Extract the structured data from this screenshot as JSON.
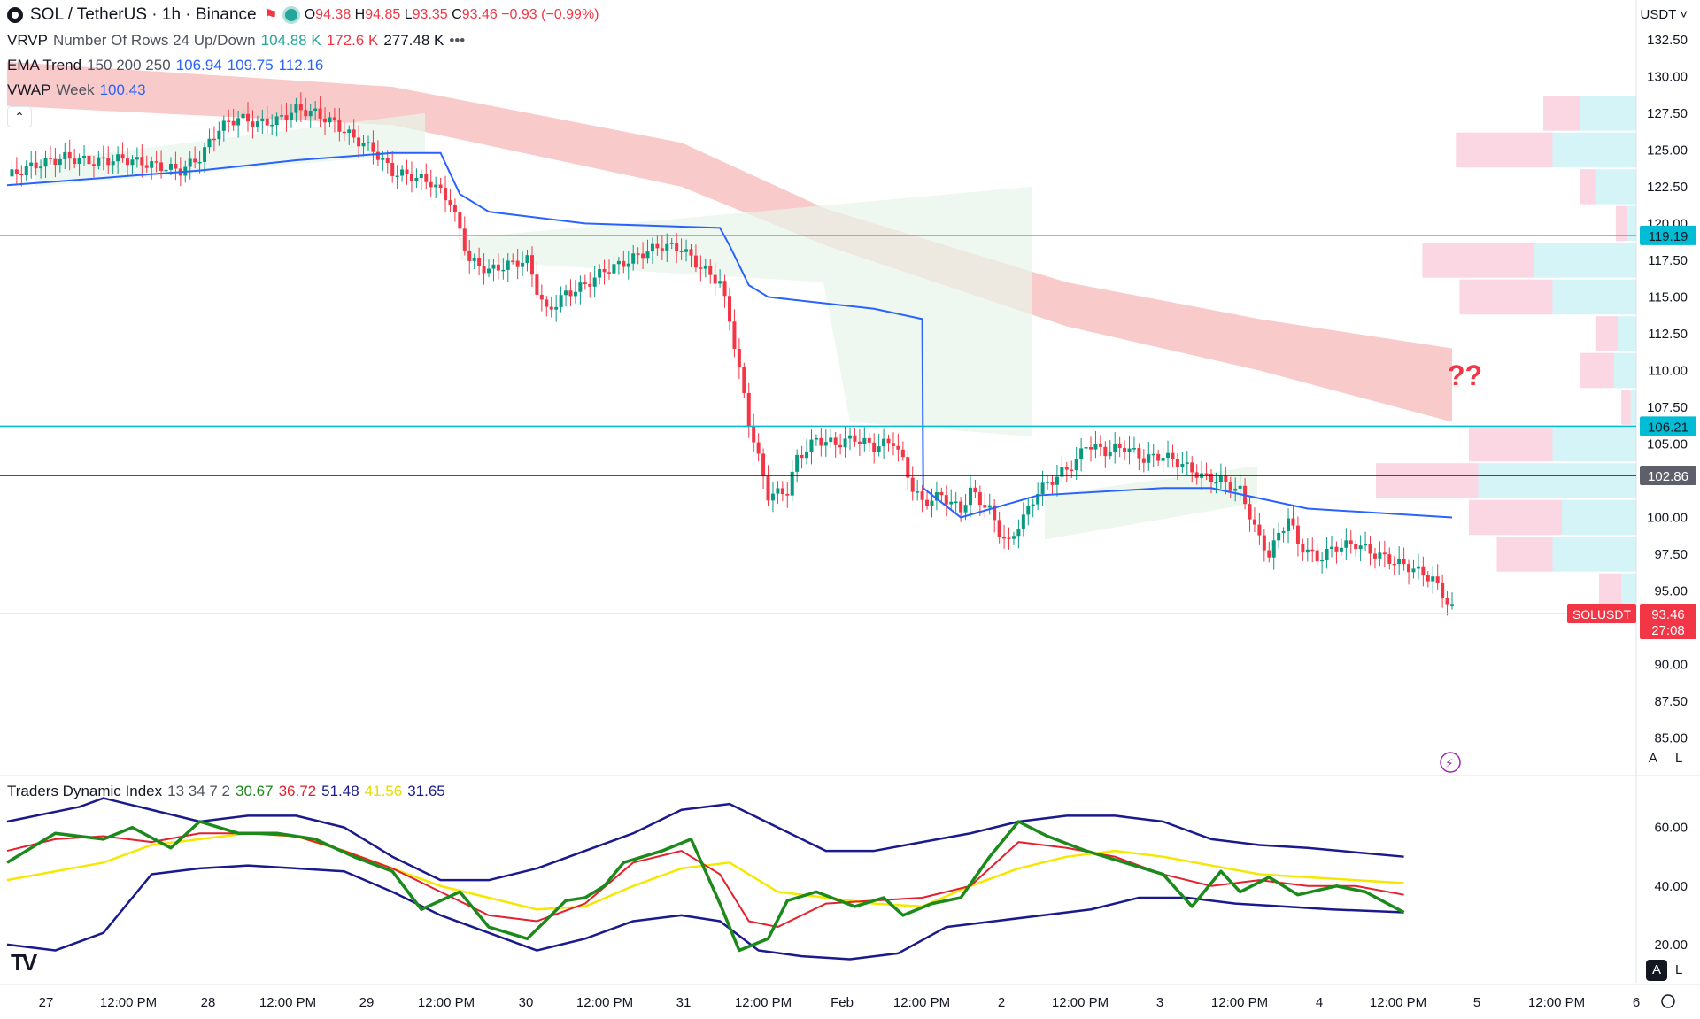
{
  "header": {
    "symbol": "SOL / TetherUS · 1h · Binance",
    "open_label": "O",
    "open": "94.38",
    "high_label": "H",
    "high": "94.85",
    "low_label": "L",
    "low": "93.35",
    "close_label": "C",
    "close": "93.46",
    "change": "−0.93 (−0.99%)",
    "currency": "USDT ˅"
  },
  "indicators": {
    "vrvp": {
      "name": "VRVP",
      "params": "Number Of Rows 24 Up/Down",
      "v1": "104.88 K",
      "v2": "172.6 K",
      "v3": "277.48 K"
    },
    "ema": {
      "name": "EMA Trend",
      "params": "150 200 250",
      "v1": "106.94",
      "v2": "109.75",
      "v3": "112.16"
    },
    "vwap": {
      "name": "VWAP",
      "params": "Week",
      "v1": "100.43"
    },
    "tdi": {
      "name": "Traders Dynamic Index",
      "params": "13 34 7 2",
      "v1": "30.67",
      "v2": "36.72",
      "v3": "51.48",
      "v4": "41.56",
      "v5": "31.65"
    }
  },
  "annotation": "??",
  "right_badges": {
    "line1": "119.19",
    "line2": "106.21",
    "line3": "102.86",
    "symbol_tag": "SOLUSDT",
    "last_price": "93.46",
    "countdown": "27:08"
  },
  "buttons": {
    "a": "A",
    "l": "L",
    "a2": "A",
    "l2": "L"
  },
  "colors": {
    "up": "#089981",
    "down": "#f23645",
    "vwap": "#2962ff",
    "horizontal_lines": "#00bcd4",
    "current_line": "#131722",
    "ema_band": "#f7b8b8",
    "tdi_green": "#1b8a1b",
    "tdi_red": "#e4202e",
    "tdi_yellow": "#f5e800",
    "tdi_navy": "#1a1a8c"
  },
  "chart_data": {
    "type": "candlestick",
    "price_axis": {
      "ylim": [
        82.5,
        134
      ],
      "ticks": [
        "132.50",
        "130.00",
        "127.50",
        "125.00",
        "122.50",
        "120.00",
        "117.50",
        "115.00",
        "112.50",
        "110.00",
        "107.50",
        "105.00",
        "102.50",
        "100.00",
        "97.50",
        "95.00",
        "90.00",
        "87.50",
        "85.00"
      ]
    },
    "time_axis": [
      "27",
      "12:00 PM",
      "28",
      "12:00 PM",
      "29",
      "12:00 PM",
      "30",
      "12:00 PM",
      "31",
      "12:00 PM",
      "Feb",
      "12:00 PM",
      "2",
      "12:00 PM",
      "3",
      "12:00 PM",
      "4",
      "12:00 PM",
      "5",
      "12:00 PM",
      "6"
    ],
    "horizontal_levels": [
      119.19,
      106.21,
      102.86
    ],
    "last_price": 93.46,
    "price_path": [
      [
        0,
        123.2
      ],
      [
        6,
        124.0
      ],
      [
        12,
        124.5
      ],
      [
        18,
        124.2
      ],
      [
        24,
        124.4
      ],
      [
        30,
        124.0
      ],
      [
        36,
        123.6
      ],
      [
        40,
        124.5
      ],
      [
        44,
        126.5
      ],
      [
        48,
        127.2
      ],
      [
        52,
        126.8
      ],
      [
        56,
        127.0
      ],
      [
        60,
        127.8
      ],
      [
        64,
        127.5
      ],
      [
        68,
        126.8
      ],
      [
        72,
        125.8
      ],
      [
        76,
        125.0
      ],
      [
        80,
        123.5
      ],
      [
        84,
        123.2
      ],
      [
        88,
        122.8
      ],
      [
        92,
        121.5
      ],
      [
        94,
        119.5
      ],
      [
        96,
        117.5
      ],
      [
        100,
        116.8
      ],
      [
        104,
        117.2
      ],
      [
        108,
        117.5
      ],
      [
        110,
        115.5
      ],
      [
        112,
        114.0
      ],
      [
        116,
        115.2
      ],
      [
        120,
        115.8
      ],
      [
        124,
        116.8
      ],
      [
        128,
        117.3
      ],
      [
        132,
        118.0
      ],
      [
        136,
        118.5
      ],
      [
        140,
        118.3
      ],
      [
        144,
        117.0
      ],
      [
        148,
        116.0
      ],
      [
        150,
        113.5
      ],
      [
        152,
        110.0
      ],
      [
        154,
        106.5
      ],
      [
        156,
        104.0
      ],
      [
        158,
        101.5
      ],
      [
        162,
        101.8
      ],
      [
        164,
        104.0
      ],
      [
        168,
        105.3
      ],
      [
        172,
        105.0
      ],
      [
        176,
        105.4
      ],
      [
        180,
        104.8
      ],
      [
        184,
        105.2
      ],
      [
        186,
        103.8
      ],
      [
        188,
        102.0
      ],
      [
        190,
        101.0
      ],
      [
        194,
        101.5
      ],
      [
        198,
        100.5
      ],
      [
        200,
        101.8
      ],
      [
        204,
        100.5
      ],
      [
        206,
        99.0
      ],
      [
        208,
        98.2
      ],
      [
        210,
        99.5
      ],
      [
        212,
        100.5
      ],
      [
        214,
        101.8
      ],
      [
        218,
        102.8
      ],
      [
        222,
        103.8
      ],
      [
        224,
        105.0
      ],
      [
        228,
        104.5
      ],
      [
        232,
        104.8
      ],
      [
        236,
        104.0
      ],
      [
        240,
        104.2
      ],
      [
        244,
        103.6
      ],
      [
        248,
        102.8
      ],
      [
        252,
        102.5
      ],
      [
        256,
        101.8
      ],
      [
        258,
        100.2
      ],
      [
        260,
        98.5
      ],
      [
        262,
        97.5
      ],
      [
        264,
        98.8
      ],
      [
        266,
        100.0
      ],
      [
        268,
        98.2
      ],
      [
        272,
        97.2
      ],
      [
        276,
        98.0
      ],
      [
        280,
        98.2
      ],
      [
        284,
        97.5
      ],
      [
        288,
        97.0
      ],
      [
        292,
        96.5
      ],
      [
        296,
        95.8
      ],
      [
        300,
        93.8
      ]
    ],
    "vwap_path": [
      [
        0,
        122.6
      ],
      [
        40,
        123.6
      ],
      [
        60,
        124.3
      ],
      [
        80,
        124.8
      ],
      [
        90,
        124.8
      ],
      [
        94,
        122.0
      ],
      [
        100,
        120.8
      ],
      [
        120,
        120.0
      ],
      [
        148,
        119.7
      ],
      [
        150,
        118.5
      ],
      [
        154,
        115.8
      ],
      [
        158,
        115.0
      ],
      [
        180,
        114.2
      ],
      [
        190,
        113.5
      ],
      [
        190.2,
        102.0
      ],
      [
        198,
        100.0
      ],
      [
        214,
        101.5
      ],
      [
        240,
        102.0
      ],
      [
        250,
        102.0
      ],
      [
        270,
        100.6
      ],
      [
        300,
        100.0
      ]
    ],
    "ema_band_top": [
      [
        0,
        131
      ],
      [
        80,
        129.3
      ],
      [
        140,
        125.5
      ],
      [
        170,
        121
      ],
      [
        220,
        116
      ],
      [
        260,
        113.5
      ],
      [
        300,
        111.5
      ]
    ],
    "ema_band_bottom": [
      [
        0,
        128
      ],
      [
        80,
        126.7
      ],
      [
        140,
        122.5
      ],
      [
        170,
        118.5
      ],
      [
        220,
        113
      ],
      [
        260,
        110
      ],
      [
        300,
        106.5
      ]
    ],
    "volume_profile_rows": [
      {
        "price": 127.5,
        "up": 0.3,
        "down": 0.2
      },
      {
        "price": 125.0,
        "up": 0.45,
        "down": 0.52
      },
      {
        "price": 122.5,
        "up": 0.22,
        "down": 0.08
      },
      {
        "price": 120.0,
        "up": 0.05,
        "down": 0.06
      },
      {
        "price": 117.5,
        "up": 0.55,
        "down": 0.6
      },
      {
        "price": 115.0,
        "up": 0.45,
        "down": 0.5
      },
      {
        "price": 112.5,
        "up": 0.1,
        "down": 0.12
      },
      {
        "price": 110.0,
        "up": 0.12,
        "down": 0.18
      },
      {
        "price": 107.5,
        "up": 0.03,
        "down": 0.05
      },
      {
        "price": 105.0,
        "up": 0.45,
        "down": 0.45
      },
      {
        "price": 102.5,
        "up": 0.85,
        "down": 0.55
      },
      {
        "price": 100.0,
        "up": 0.4,
        "down": 0.5
      },
      {
        "price": 97.5,
        "up": 0.45,
        "down": 0.3
      },
      {
        "price": 95.0,
        "up": 0.08,
        "down": 0.12
      }
    ],
    "tdi": {
      "ylim": [
        10,
        75
      ],
      "ticks": [
        "60.00",
        "40.00",
        "20.00"
      ],
      "rsi_price_green": [
        [
          0,
          48
        ],
        [
          10,
          58
        ],
        [
          20,
          56
        ],
        [
          26,
          60
        ],
        [
          34,
          53
        ],
        [
          40,
          62
        ],
        [
          48,
          58
        ],
        [
          56,
          58
        ],
        [
          64,
          56
        ],
        [
          72,
          50
        ],
        [
          80,
          45
        ],
        [
          86,
          32
        ],
        [
          94,
          38
        ],
        [
          100,
          26
        ],
        [
          108,
          22
        ],
        [
          116,
          35
        ],
        [
          120,
          36
        ],
        [
          124,
          40
        ],
        [
          128,
          48
        ],
        [
          132,
          50
        ],
        [
          136,
          52
        ],
        [
          142,
          56
        ],
        [
          148,
          34
        ],
        [
          152,
          18
        ],
        [
          158,
          22
        ],
        [
          162,
          35
        ],
        [
          168,
          38
        ],
        [
          176,
          33
        ],
        [
          182,
          36
        ],
        [
          186,
          30
        ],
        [
          192,
          34
        ],
        [
          198,
          36
        ],
        [
          204,
          50
        ],
        [
          210,
          62
        ],
        [
          216,
          57
        ],
        [
          224,
          52
        ],
        [
          232,
          48
        ],
        [
          240,
          44
        ],
        [
          246,
          33
        ],
        [
          252,
          45
        ],
        [
          256,
          38
        ],
        [
          262,
          43
        ],
        [
          268,
          37
        ],
        [
          276,
          40
        ],
        [
          282,
          38
        ],
        [
          290,
          31
        ]
      ],
      "signal_red": [
        [
          0,
          52
        ],
        [
          10,
          56
        ],
        [
          20,
          57
        ],
        [
          30,
          55
        ],
        [
          40,
          58
        ],
        [
          50,
          58
        ],
        [
          60,
          57
        ],
        [
          70,
          52
        ],
        [
          80,
          46
        ],
        [
          90,
          38
        ],
        [
          100,
          30
        ],
        [
          110,
          28
        ],
        [
          120,
          34
        ],
        [
          130,
          48
        ],
        [
          140,
          52
        ],
        [
          148,
          44
        ],
        [
          154,
          28
        ],
        [
          160,
          26
        ],
        [
          170,
          34
        ],
        [
          180,
          35
        ],
        [
          190,
          36
        ],
        [
          200,
          40
        ],
        [
          210,
          55
        ],
        [
          220,
          53
        ],
        [
          230,
          50
        ],
        [
          240,
          44
        ],
        [
          250,
          40
        ],
        [
          260,
          42
        ],
        [
          270,
          40
        ],
        [
          280,
          40
        ],
        [
          290,
          37
        ]
      ],
      "market_base_yellow": [
        [
          0,
          42
        ],
        [
          20,
          48
        ],
        [
          30,
          54
        ],
        [
          40,
          56
        ],
        [
          50,
          58
        ],
        [
          60,
          57
        ],
        [
          70,
          52
        ],
        [
          80,
          46
        ],
        [
          90,
          40
        ],
        [
          100,
          36
        ],
        [
          110,
          32
        ],
        [
          120,
          33
        ],
        [
          130,
          40
        ],
        [
          140,
          46
        ],
        [
          150,
          48
        ],
        [
          160,
          38
        ],
        [
          170,
          36
        ],
        [
          180,
          34
        ],
        [
          190,
          33
        ],
        [
          200,
          40
        ],
        [
          210,
          46
        ],
        [
          220,
          50
        ],
        [
          230,
          52
        ],
        [
          240,
          50
        ],
        [
          250,
          47
        ],
        [
          260,
          44
        ],
        [
          270,
          43
        ],
        [
          290,
          41
        ]
      ],
      "upper_band": [
        [
          0,
          62
        ],
        [
          15,
          67
        ],
        [
          20,
          70
        ],
        [
          30,
          66
        ],
        [
          40,
          62
        ],
        [
          50,
          64
        ],
        [
          60,
          64
        ],
        [
          70,
          60
        ],
        [
          80,
          50
        ],
        [
          90,
          42
        ],
        [
          100,
          42
        ],
        [
          110,
          46
        ],
        [
          120,
          52
        ],
        [
          130,
          58
        ],
        [
          140,
          66
        ],
        [
          150,
          68
        ],
        [
          160,
          60
        ],
        [
          170,
          52
        ],
        [
          180,
          52
        ],
        [
          190,
          55
        ],
        [
          200,
          58
        ],
        [
          210,
          62
        ],
        [
          220,
          64
        ],
        [
          230,
          64
        ],
        [
          240,
          62
        ],
        [
          250,
          56
        ],
        [
          260,
          54
        ],
        [
          270,
          53
        ],
        [
          290,
          50
        ]
      ],
      "lower_band": [
        [
          0,
          20
        ],
        [
          10,
          18
        ],
        [
          20,
          24
        ],
        [
          30,
          44
        ],
        [
          40,
          46
        ],
        [
          50,
          47
        ],
        [
          60,
          46
        ],
        [
          70,
          45
        ],
        [
          80,
          38
        ],
        [
          90,
          30
        ],
        [
          100,
          24
        ],
        [
          110,
          18
        ],
        [
          120,
          22
        ],
        [
          130,
          28
        ],
        [
          140,
          30
        ],
        [
          148,
          28
        ],
        [
          156,
          18
        ],
        [
          165,
          16
        ],
        [
          175,
          15
        ],
        [
          185,
          17
        ],
        [
          195,
          26
        ],
        [
          205,
          28
        ],
        [
          215,
          30
        ],
        [
          225,
          32
        ],
        [
          235,
          36
        ],
        [
          245,
          36
        ],
        [
          255,
          34
        ],
        [
          265,
          33
        ],
        [
          275,
          32
        ],
        [
          290,
          31
        ]
      ]
    }
  }
}
